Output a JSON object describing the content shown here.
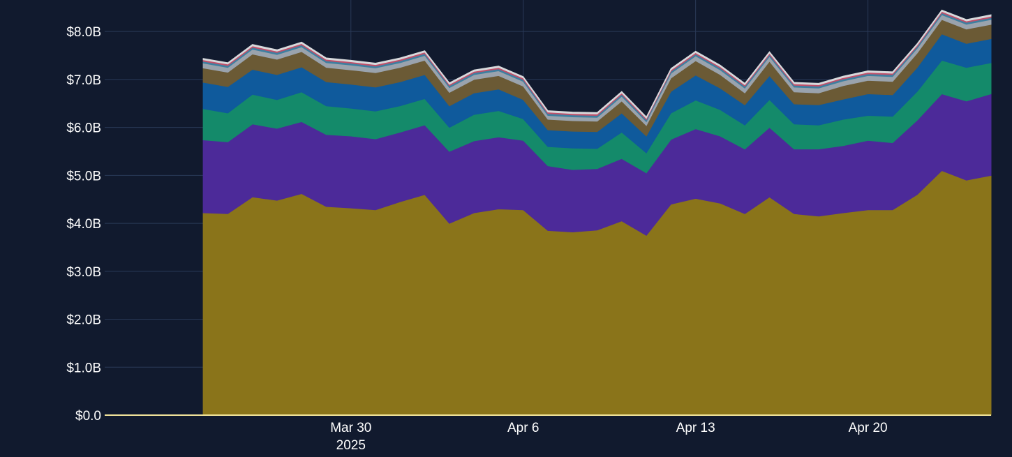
{
  "chart_data": {
    "type": "area",
    "stacked": true,
    "title": "",
    "xlabel": "",
    "ylabel": "",
    "grid": true,
    "legend": "none",
    "xlim": [
      "2025-03-20",
      "2025-04-25"
    ],
    "ylim": [
      0,
      8.25
    ],
    "y_unit": "billions USD",
    "y_ticks": [
      0,
      1,
      2,
      3,
      4,
      5,
      6,
      7,
      8
    ],
    "y_tick_labels": [
      "$0.0",
      "$1.0B",
      "$2.0B",
      "$3.0B",
      "$4.0B",
      "$5.0B",
      "$6.0B",
      "$7.0B",
      "$8.0B"
    ],
    "x_ticks": [
      {
        "date": "2025-03-30",
        "label": "Mar 30",
        "sublabel": "2025"
      },
      {
        "date": "2025-04-06",
        "label": "Apr 6",
        "sublabel": ""
      },
      {
        "date": "2025-04-13",
        "label": "Apr 13",
        "sublabel": ""
      },
      {
        "date": "2025-04-20",
        "label": "Apr 20",
        "sublabel": ""
      }
    ],
    "x": [
      "2025-03-24",
      "2025-03-25",
      "2025-03-26",
      "2025-03-27",
      "2025-03-28",
      "2025-03-29",
      "2025-03-30",
      "2025-03-31",
      "2025-04-01",
      "2025-04-02",
      "2025-04-03",
      "2025-04-04",
      "2025-04-05",
      "2025-04-06",
      "2025-04-07",
      "2025-04-08",
      "2025-04-09",
      "2025-04-10",
      "2025-04-11",
      "2025-04-12",
      "2025-04-13",
      "2025-04-14",
      "2025-04-15",
      "2025-04-16",
      "2025-04-17",
      "2025-04-18",
      "2025-04-19",
      "2025-04-20",
      "2025-04-21",
      "2025-04-22",
      "2025-04-23",
      "2025-04-24",
      "2025-04-25"
    ],
    "series": [
      {
        "color": "#8a741a",
        "values": [
          4.22,
          4.2,
          4.55,
          4.48,
          4.62,
          4.35,
          4.32,
          4.28,
          4.45,
          4.6,
          4.0,
          4.22,
          4.3,
          4.28,
          3.85,
          3.82,
          3.86,
          4.05,
          3.75,
          4.4,
          4.52,
          4.42,
          4.2,
          4.55,
          4.2,
          4.15,
          4.22,
          4.28,
          4.28,
          4.6,
          5.1,
          4.9,
          5.0
        ]
      },
      {
        "color": "#4c2a99",
        "values": [
          1.52,
          1.5,
          1.52,
          1.5,
          1.5,
          1.5,
          1.5,
          1.48,
          1.45,
          1.45,
          1.5,
          1.5,
          1.5,
          1.45,
          1.35,
          1.3,
          1.28,
          1.3,
          1.3,
          1.35,
          1.45,
          1.4,
          1.35,
          1.45,
          1.35,
          1.4,
          1.4,
          1.45,
          1.4,
          1.55,
          1.6,
          1.65,
          1.7
        ]
      },
      {
        "color": "#148a6a",
        "values": [
          0.65,
          0.6,
          0.62,
          0.6,
          0.62,
          0.6,
          0.58,
          0.58,
          0.55,
          0.55,
          0.5,
          0.55,
          0.55,
          0.45,
          0.4,
          0.45,
          0.42,
          0.55,
          0.42,
          0.55,
          0.6,
          0.55,
          0.5,
          0.58,
          0.52,
          0.5,
          0.55,
          0.52,
          0.55,
          0.6,
          0.7,
          0.7,
          0.65
        ]
      },
      {
        "color": "#0f5a9c",
        "values": [
          0.55,
          0.55,
          0.52,
          0.52,
          0.52,
          0.5,
          0.5,
          0.5,
          0.5,
          0.5,
          0.45,
          0.45,
          0.45,
          0.4,
          0.35,
          0.35,
          0.35,
          0.4,
          0.35,
          0.45,
          0.52,
          0.45,
          0.42,
          0.5,
          0.42,
          0.42,
          0.42,
          0.45,
          0.45,
          0.5,
          0.55,
          0.5,
          0.5
        ]
      },
      {
        "color": "#6b5a35",
        "values": [
          0.3,
          0.3,
          0.32,
          0.32,
          0.32,
          0.3,
          0.3,
          0.3,
          0.3,
          0.3,
          0.28,
          0.28,
          0.28,
          0.28,
          0.22,
          0.22,
          0.22,
          0.25,
          0.22,
          0.28,
          0.3,
          0.28,
          0.25,
          0.3,
          0.25,
          0.25,
          0.28,
          0.28,
          0.28,
          0.3,
          0.3,
          0.3,
          0.3
        ]
      },
      {
        "color": "#9aa3ad",
        "values": [
          0.1,
          0.1,
          0.1,
          0.1,
          0.1,
          0.1,
          0.1,
          0.1,
          0.1,
          0.1,
          0.1,
          0.1,
          0.1,
          0.1,
          0.08,
          0.08,
          0.08,
          0.1,
          0.08,
          0.1,
          0.1,
          0.1,
          0.1,
          0.1,
          0.1,
          0.1,
          0.1,
          0.1,
          0.1,
          0.1,
          0.1,
          0.1,
          0.1
        ]
      },
      {
        "color": "#3f7fa0",
        "values": [
          0.04,
          0.04,
          0.04,
          0.04,
          0.04,
          0.04,
          0.04,
          0.04,
          0.04,
          0.04,
          0.04,
          0.04,
          0.04,
          0.04,
          0.04,
          0.04,
          0.04,
          0.04,
          0.04,
          0.04,
          0.04,
          0.04,
          0.04,
          0.04,
          0.04,
          0.04,
          0.04,
          0.04,
          0.04,
          0.04,
          0.04,
          0.04,
          0.04
        ]
      },
      {
        "color": "#c0506a",
        "values": [
          0.03,
          0.03,
          0.03,
          0.03,
          0.03,
          0.03,
          0.03,
          0.03,
          0.03,
          0.03,
          0.03,
          0.03,
          0.03,
          0.03,
          0.03,
          0.03,
          0.03,
          0.03,
          0.03,
          0.03,
          0.03,
          0.03,
          0.03,
          0.03,
          0.03,
          0.03,
          0.03,
          0.03,
          0.03,
          0.03,
          0.03,
          0.03,
          0.03
        ]
      },
      {
        "color": "#d7d9dc",
        "values": [
          0.03,
          0.03,
          0.03,
          0.03,
          0.03,
          0.03,
          0.03,
          0.03,
          0.03,
          0.03,
          0.03,
          0.03,
          0.03,
          0.03,
          0.03,
          0.03,
          0.03,
          0.03,
          0.03,
          0.03,
          0.03,
          0.03,
          0.03,
          0.03,
          0.03,
          0.03,
          0.03,
          0.03,
          0.03,
          0.03,
          0.03,
          0.03,
          0.03
        ]
      }
    ],
    "colors": {
      "background": "#111a2e",
      "grid": "#2a3a58",
      "tick_text": "#ffffff",
      "baseline": "#f2e49a"
    }
  }
}
